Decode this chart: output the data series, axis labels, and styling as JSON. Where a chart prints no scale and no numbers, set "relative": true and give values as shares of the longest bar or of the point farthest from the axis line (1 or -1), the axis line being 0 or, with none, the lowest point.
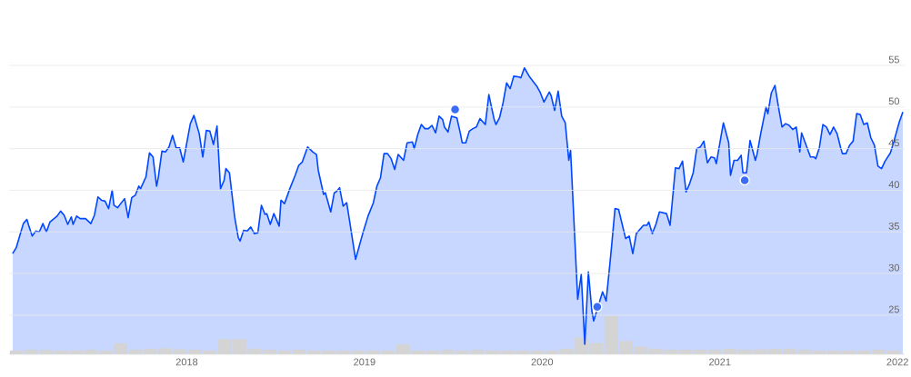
{
  "chart_data": [
    {
      "type": "area",
      "xlim": [
        2017.0,
        2022.04
      ],
      "ylim": [
        20.3,
        55
      ],
      "xticks": [
        2018,
        2019,
        2020,
        2021,
        2022
      ],
      "yticks": [
        25,
        30,
        35,
        40,
        45,
        50,
        55
      ],
      "grid": "y",
      "series": [
        {
          "color": "#0047ff",
          "x": [
            2017.02,
            2017.04,
            2017.08,
            2017.1,
            2017.11,
            2017.13,
            2017.15,
            2017.17,
            2017.19,
            2017.21,
            2017.23,
            2017.27,
            2017.29,
            2017.31,
            2017.33,
            2017.35,
            2017.36,
            2017.38,
            2017.4,
            2017.43,
            2017.46,
            2017.48,
            2017.5,
            2017.52,
            2017.54,
            2017.56,
            2017.58,
            2017.59,
            2017.61,
            2017.65,
            2017.67,
            2017.69,
            2017.71,
            2017.73,
            2017.74,
            2017.77,
            2017.79,
            2017.81,
            2017.83,
            2017.84,
            2017.86,
            2017.88,
            2017.9,
            2017.92,
            2017.94,
            2017.96,
            2017.98,
            2018.02,
            2018.04,
            2018.07,
            2018.09,
            2018.11,
            2018.13,
            2018.15,
            2018.17,
            2018.19,
            2018.21,
            2018.22,
            2018.24,
            2018.27,
            2018.29,
            2018.3,
            2018.32,
            2018.34,
            2018.36,
            2018.38,
            2018.4,
            2018.42,
            2018.44,
            2018.45,
            2018.47,
            2018.49,
            2018.52,
            2018.53,
            2018.55,
            2018.58,
            2018.61,
            2018.63,
            2018.65,
            2018.68,
            2018.71,
            2018.73,
            2018.74,
            2018.77,
            2018.78,
            2018.81,
            2018.83,
            2018.84,
            2018.86,
            2018.88,
            2018.9,
            2018.92,
            2018.95,
            2018.99,
            2019.02,
            2019.05,
            2019.07,
            2019.09,
            2019.11,
            2019.13,
            2019.15,
            2019.17,
            2019.19,
            2019.22,
            2019.24,
            2019.27,
            2019.28,
            2019.3,
            2019.32,
            2019.34,
            2019.36,
            2019.38,
            2019.4,
            2019.42,
            2019.44,
            2019.45,
            2019.47,
            2019.49,
            2019.52,
            2019.54,
            2019.55,
            2019.57,
            2019.59,
            2019.61,
            2019.63,
            2019.65,
            2019.68,
            2019.7,
            2019.73,
            2019.74,
            2019.76,
            2019.78,
            2019.8,
            2019.82,
            2019.84,
            2019.87,
            2019.88,
            2019.9,
            2019.93,
            2019.97,
            2019.99,
            2020.01,
            2020.04,
            2020.05,
            2020.07,
            2020.09,
            2020.11,
            2020.13,
            2020.15,
            2020.16,
            2020.2,
            2020.22,
            2020.24,
            2020.26,
            2020.28,
            2020.29,
            2020.34,
            2020.36,
            2020.38,
            2020.39,
            2020.41,
            2020.43,
            2020.47,
            2020.49,
            2020.51,
            2020.53,
            2020.57,
            2020.59,
            2020.6,
            2020.62,
            2020.64,
            2020.66,
            2020.7,
            2020.72,
            2020.75,
            2020.77,
            2020.79,
            2020.81,
            2020.83,
            2020.85,
            2020.87,
            2020.89,
            2020.91,
            2020.93,
            2020.95,
            2020.97,
            2020.98,
            2021.02,
            2021.05,
            2021.06,
            2021.08,
            2021.1,
            2021.12,
            2021.13,
            2021.15,
            2021.17,
            2021.2,
            2021.21,
            2021.23,
            2021.26,
            2021.27,
            2021.29,
            2021.31,
            2021.33,
            2021.35,
            2021.37,
            2021.39,
            2021.41,
            2021.43,
            2021.45,
            2021.46,
            2021.51,
            2021.53,
            2021.54,
            2021.56,
            2021.58,
            2021.6,
            2021.62,
            2021.64,
            2021.66,
            2021.68,
            2021.69,
            2021.71,
            2021.73,
            2021.75,
            2021.77,
            2021.79,
            2021.81,
            2021.83,
            2021.85,
            2021.87,
            2021.89,
            2021.91,
            2021.93,
            2021.96,
            2021.98,
            2022.01,
            2022.03
          ],
          "values": [
            32.4,
            33.1,
            36.0,
            36.5,
            35.8,
            34.5,
            35.1,
            35.0,
            36.0,
            35.0,
            36.2,
            36.9,
            37.5,
            37.0,
            35.9,
            36.8,
            35.9,
            36.9,
            36.6,
            36.6,
            36.0,
            37.0,
            39.2,
            38.8,
            38.7,
            37.8,
            40.0,
            38.2,
            37.9,
            39.0,
            36.7,
            39.1,
            39.4,
            40.5,
            40.2,
            41.6,
            44.5,
            44.0,
            40.5,
            41.6,
            44.7,
            44.6,
            45.2,
            46.6,
            45.1,
            45.1,
            43.4,
            48.0,
            49.0,
            46.8,
            44.0,
            47.2,
            47.1,
            45.5,
            47.7,
            40.2,
            41.2,
            42.6,
            42.1,
            36.7,
            34.3,
            33.9,
            35.2,
            35.1,
            35.6,
            34.8,
            34.9,
            38.2,
            37.1,
            37.2,
            35.9,
            37.2,
            35.7,
            38.8,
            38.4,
            40.2,
            41.8,
            43.0,
            43.4,
            45.2,
            44.6,
            44.3,
            42.4,
            39.5,
            39.7,
            37.4,
            39.7,
            39.8,
            40.3,
            38.1,
            38.5,
            35.8,
            31.7,
            34.8,
            36.9,
            38.5,
            40.5,
            41.5,
            44.4,
            44.4,
            43.8,
            42.5,
            44.3,
            43.6,
            45.7,
            45.8,
            45.0,
            46.7,
            47.9,
            47.4,
            47.4,
            47.8,
            46.9,
            48.9,
            48.5,
            47.6,
            47.0,
            48.9,
            48.7,
            46.8,
            45.7,
            45.7,
            47.1,
            47.4,
            47.6,
            48.6,
            47.9,
            51.5,
            48.5,
            47.9,
            48.7,
            50.5,
            52.9,
            52.2,
            53.7,
            53.6,
            53.5,
            54.7,
            53.6,
            52.5,
            51.7,
            50.6,
            51.8,
            51.4,
            49.6,
            51.9,
            48.9,
            48.1,
            43.6,
            44.8,
            26.9,
            29.9,
            21.5,
            30.2,
            25.5,
            24.3,
            27.8,
            26.7,
            30.9,
            33.1,
            37.8,
            37.7,
            34.2,
            34.5,
            32.4,
            34.8,
            35.8,
            35.8,
            36.2,
            34.8,
            35.9,
            37.4,
            37.2,
            35.8,
            42.7,
            42.6,
            43.5,
            39.8,
            40.8,
            42.1,
            45.0,
            45.2,
            45.9,
            43.3,
            44.0,
            43.9,
            43.2,
            48.1,
            45.7,
            41.8,
            43.6,
            43.6,
            44.2,
            42.1,
            42.1,
            46.0,
            43.6,
            44.4,
            46.8,
            50.0,
            49.2,
            51.7,
            52.6,
            50.0,
            47.6,
            48.0,
            47.8,
            47.3,
            47.6,
            44.6,
            46.9,
            44.0,
            44.0,
            43.8,
            45.1,
            47.9,
            47.6,
            46.7,
            47.6,
            46.8,
            45.1,
            44.4,
            44.4,
            45.4,
            45.9,
            49.2,
            49.1,
            47.9,
            48.1,
            46.3,
            45.4,
            42.9,
            42.6,
            43.5,
            44.5,
            45.9,
            48.2,
            49.4
          ]
        },
        {
          "type": "scatter",
          "marker": "circle",
          "color": "#3b6cf6",
          "x": [
            2019.51,
            2020.31,
            2021.14
          ],
          "values": [
            49.7,
            26.0,
            41.2
          ]
        }
      ]
    },
    {
      "type": "bar",
      "relative": true,
      "color": "#d4d4d4",
      "categories": [
        null,
        null,
        null,
        null,
        null,
        null,
        null,
        null,
        null,
        null,
        null,
        null,
        null,
        null,
        null,
        null,
        null,
        null,
        null,
        null,
        null,
        null,
        null,
        null,
        null,
        null,
        null,
        null,
        null,
        null,
        null,
        null,
        null,
        null,
        null,
        null,
        null,
        null,
        null,
        null,
        null,
        null,
        null,
        null,
        null,
        null,
        null,
        null,
        null,
        null,
        null,
        null,
        null,
        null,
        null,
        null,
        null,
        null,
        null,
        null
      ],
      "values": [
        0.1,
        0.12,
        0.11,
        0.1,
        0.1,
        0.12,
        0.1,
        0.29,
        0.12,
        0.14,
        0.16,
        0.13,
        0.12,
        0.1,
        0.4,
        0.4,
        0.15,
        0.12,
        0.1,
        0.12,
        0.1,
        0.1,
        0.1,
        0.1,
        0.1,
        0.1,
        0.26,
        0.1,
        0.1,
        0.12,
        0.1,
        0.12,
        0.1,
        0.1,
        0.1,
        0.1,
        0.1,
        0.15,
        0.44,
        0.3,
        1.0,
        0.35,
        0.2,
        0.15,
        0.12,
        0.12,
        0.12,
        0.12,
        0.14,
        0.12,
        0.13,
        0.14,
        0.15,
        0.12,
        0.1,
        0.1,
        0.1,
        0.1,
        0.12,
        0.1
      ]
    }
  ]
}
